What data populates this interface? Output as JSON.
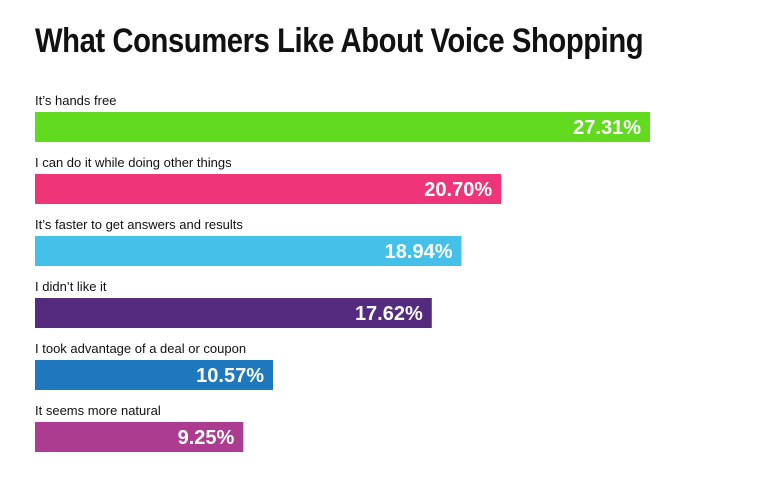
{
  "chart_data": {
    "type": "bar",
    "orientation": "horizontal",
    "title": "What Consumers Like About Voice Shopping",
    "xlabel": "",
    "ylabel": "",
    "xlim": [
      0,
      30
    ],
    "grid": false,
    "categories": [
      "It’s hands free",
      "I can do it while doing other things",
      "It’s faster to get answers and results",
      "I didn’t like it",
      "I took advantage of a deal or coupon",
      "It seems more natural"
    ],
    "values": [
      27.31,
      20.7,
      18.94,
      17.62,
      10.57,
      9.25
    ],
    "value_labels": [
      "27.31%",
      "20.70%",
      "18.94%",
      "17.62%",
      "10.57%",
      "9.25%"
    ],
    "colors": [
      "#62DA1F",
      "#EE3577",
      "#45C0E8",
      "#552B80",
      "#1F77BD",
      "#AC3C90"
    ]
  }
}
